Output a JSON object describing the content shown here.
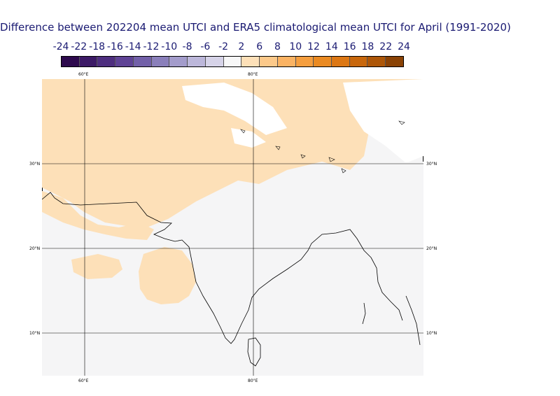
{
  "title": "Difference between 202204 mean UTCI and ERA5 climatological mean UTCI for April (1991-2020)",
  "colorbar": {
    "labels": [
      "-24",
      "-22",
      "-18",
      "-16",
      "-14",
      "-12",
      "-10",
      "-8",
      "-6",
      "-2",
      "2",
      "6",
      "8",
      "10",
      "12",
      "14",
      "16",
      "18",
      "22",
      "24"
    ],
    "colors": [
      "#2d0a4d",
      "#3c1a66",
      "#4e2e7f",
      "#5f4395",
      "#7260a8",
      "#8a7fba",
      "#a39ccb",
      "#bcb7da",
      "#d6d3e8",
      "#f7f7f7",
      "#fde0b8",
      "#fcc98a",
      "#fbb363",
      "#f59e3e",
      "#ea8a22",
      "#dc7714",
      "#c8670c",
      "#ad5608",
      "#8a4205"
    ]
  },
  "map": {
    "lon_labels": [
      "60°E",
      "80°E"
    ],
    "lat_labels": [
      "30°N",
      "20°N",
      "10°N"
    ],
    "colors": {
      "neutral": "#f5f5f6",
      "warm_light": "#fde0b8",
      "cool_light": "#ffffff",
      "coast": "#000000",
      "grid": "#000000"
    }
  }
}
